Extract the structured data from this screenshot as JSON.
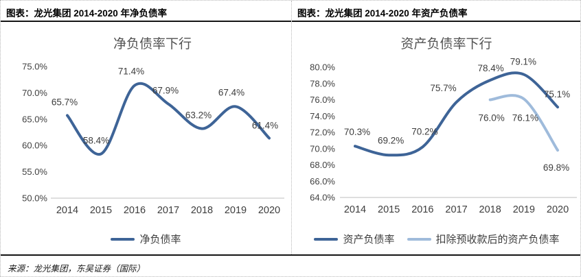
{
  "source": "来源：龙光集团，东吴证券（国际）",
  "colors": {
    "series_dark_blue": "#3E6497",
    "series_light_blue": "#9FBBDB",
    "axis_line": "#c9c9c9"
  },
  "chart_data": [
    {
      "type": "line",
      "header": "图表：龙光集团 2014-2020 年净负债率",
      "title": "净负债率下行",
      "categories": [
        "2014",
        "2015",
        "2016",
        "2017",
        "2018",
        "2019",
        "2020"
      ],
      "series": [
        {
          "name": "净负债率",
          "color": "#3E6497",
          "values": [
            65.7,
            58.4,
            71.4,
            67.9,
            63.2,
            67.4,
            61.4
          ],
          "labels": [
            "65.7%",
            "58.4%",
            "71.4%",
            "67.9%",
            "63.2%",
            "67.4%",
            "61.4%"
          ]
        }
      ],
      "ylim": [
        50,
        75
      ],
      "ytick_step": 5,
      "yticks": [
        "75.0%",
        "70.0%",
        "65.0%",
        "60.0%",
        "55.0%",
        "50.0%"
      ],
      "grid": false,
      "smooth": true,
      "legend_position": "bottom"
    },
    {
      "type": "line",
      "header": "图表：龙光集团 2014-2020 年资产负债率",
      "title": "资产负债率下行",
      "categories": [
        "2014",
        "2015",
        "2016",
        "2017",
        "2018",
        "2019",
        "2020"
      ],
      "series": [
        {
          "name": "资产负债率",
          "color": "#3E6497",
          "values": [
            70.3,
            69.2,
            70.2,
            75.7,
            78.4,
            79.1,
            75.1
          ],
          "labels": [
            "70.3%",
            "69.2%",
            "70.2%",
            "75.7%",
            "78.4%",
            "79.1%",
            "75.1%"
          ]
        },
        {
          "name": "扣除预收款后的资产负债率",
          "color": "#9FBBDB",
          "values": [
            null,
            null,
            null,
            null,
            76.0,
            76.1,
            69.8
          ],
          "labels": [
            null,
            null,
            null,
            null,
            "76.0%",
            "76.1%",
            "69.8%"
          ]
        }
      ],
      "ylim": [
        64,
        80
      ],
      "ytick_step": 2,
      "yticks": [
        "80.0%",
        "78.0%",
        "76.0%",
        "74.0%",
        "72.0%",
        "70.0%",
        "68.0%",
        "66.0%",
        "64.0%"
      ],
      "grid": false,
      "smooth": true,
      "legend_position": "bottom"
    }
  ]
}
